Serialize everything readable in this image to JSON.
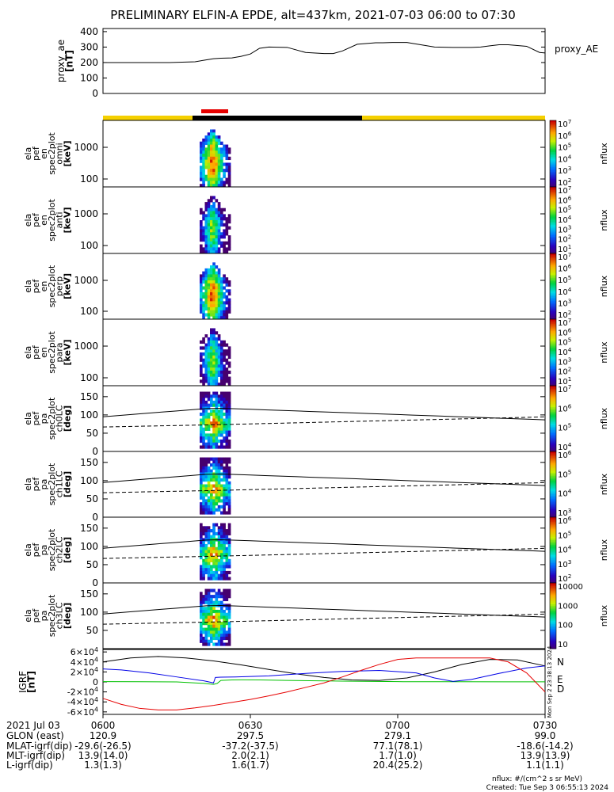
{
  "title": "PRELIMINARY ELFIN-A EPDE, alt=437km, 2021-07-03 06:00 to 07:30",
  "colors": {
    "red": "#e60000",
    "yellow": "#f5d000",
    "black": "#000000",
    "blue": "#0000e6",
    "green": "#00c000"
  },
  "chart_data": [
    {
      "type": "line",
      "id": "proxy_ae",
      "ylabel_lines": [
        "proxy_ae",
        "[nT]"
      ],
      "legend": "proxy_AE",
      "yticks": [
        "0",
        "100",
        "200",
        "300",
        "400"
      ],
      "ylim": [
        0,
        420
      ],
      "x_minutes": [
        0,
        20,
        36,
        50,
        55,
        60,
        64,
        70,
        75,
        80,
        85,
        90,
        100,
        110,
        120,
        125,
        130,
        138,
        148,
        152,
        157,
        165,
        180,
        190,
        200,
        205,
        210,
        215,
        220,
        230,
        237,
        240
      ],
      "values": [
        200,
        200,
        200,
        205,
        215,
        225,
        228,
        230,
        240,
        255,
        292,
        300,
        298,
        265,
        258,
        258,
        275,
        318,
        328,
        328,
        330,
        330,
        300,
        298,
        298,
        300,
        308,
        315,
        315,
        305,
        265,
        262
      ]
    },
    {
      "type": "heatmap",
      "id": "omni",
      "ylabel_lines": [
        "ela",
        "pef",
        "en",
        "spec2plot",
        "omni",
        "[keV]"
      ],
      "yticks": [
        "100",
        "1000"
      ],
      "colorbar_label": "nflux",
      "colorbar_ticks": [
        "10^2",
        "10^3",
        "10^4",
        "10^5",
        "10^6",
        "10^7"
      ]
    },
    {
      "type": "heatmap",
      "id": "anti",
      "ylabel_lines": [
        "ela",
        "pef",
        "en",
        "spec2plot",
        "anti",
        "[keV]"
      ],
      "yticks": [
        "100",
        "1000"
      ],
      "colorbar_label": "nflux",
      "colorbar_ticks": [
        "10^1",
        "10^2",
        "10^3",
        "10^4",
        "10^5",
        "10^6",
        "10^7"
      ]
    },
    {
      "type": "heatmap",
      "id": "perp",
      "ylabel_lines": [
        "ela",
        "pef",
        "en",
        "spec2plot",
        "perp",
        "[keV]"
      ],
      "yticks": [
        "100",
        "1000"
      ],
      "colorbar_label": "nflux",
      "colorbar_ticks": [
        "10^2",
        "10^3",
        "10^4",
        "10^5",
        "10^6",
        "10^7"
      ]
    },
    {
      "type": "heatmap",
      "id": "para",
      "ylabel_lines": [
        "ela",
        "pef",
        "en",
        "spec2plot",
        "para",
        "[keV]"
      ],
      "yticks": [
        "100",
        "1000"
      ],
      "colorbar_label": "nflux",
      "colorbar_ticks": [
        "10^1",
        "10^2",
        "10^3",
        "10^4",
        "10^5",
        "10^6",
        "10^7"
      ]
    },
    {
      "type": "heatmap",
      "id": "ch0LC",
      "ylabel_lines": [
        "ela",
        "pef",
        "pa",
        "spec2plot",
        "ch0LC",
        "[deg]"
      ],
      "yticks": [
        "0",
        "50",
        "100",
        "150"
      ],
      "colorbar_label": "nflux",
      "colorbar_ticks": [
        "10^4",
        "10^5",
        "10^6",
        "10^7"
      ]
    },
    {
      "type": "heatmap",
      "id": "ch1LC",
      "ylabel_lines": [
        "ela",
        "pef",
        "pa",
        "spec2plot",
        "ch1LC",
        "[deg]"
      ],
      "yticks": [
        "0",
        "50",
        "100",
        "150"
      ],
      "colorbar_label": "nflux",
      "colorbar_ticks": [
        "10^3",
        "10^4",
        "10^5",
        "10^6"
      ]
    },
    {
      "type": "heatmap",
      "id": "ch2LC",
      "ylabel_lines": [
        "ela",
        "pef",
        "pa",
        "spec2plot",
        "ch2LC",
        "[deg]"
      ],
      "yticks": [
        "0",
        "50",
        "100",
        "150"
      ],
      "colorbar_label": "nflux",
      "colorbar_ticks": [
        "10^2",
        "10^3",
        "10^4",
        "10^5",
        "10^6"
      ]
    },
    {
      "type": "heatmap",
      "id": "ch3LC",
      "ylabel_lines": [
        "ela",
        "pef",
        "pa",
        "spec2plot",
        "ch3LC",
        "[deg]"
      ],
      "yticks": [
        "50",
        "100",
        "150"
      ],
      "colorbar_label": "nflux",
      "colorbar_ticks": [
        "10",
        "100",
        "1000",
        "10000"
      ]
    },
    {
      "type": "line",
      "id": "igrf",
      "ylabel_lines": [
        "IGRF",
        "[nT]"
      ],
      "yticks": [
        "-6×10^4",
        "-4×10^4",
        "-2×10^4",
        "0",
        "2×10^4",
        "4×10^4",
        "6×10^4"
      ],
      "ylim": [
        -65000,
        65000
      ],
      "legend": [
        "N",
        "E",
        "D"
      ],
      "side_text": "Mon Sep 2 23:38:13 2024",
      "series": [
        {
          "name": "N",
          "color": "#000000",
          "x_minutes": [
            0,
            15,
            30,
            45,
            60,
            75,
            90,
            105,
            120,
            135,
            150,
            165,
            180,
            195,
            210,
            225,
            240
          ],
          "values": [
            40000,
            48000,
            51000,
            48000,
            42000,
            34000,
            25000,
            16000,
            9000,
            4000,
            3000,
            8000,
            20000,
            35000,
            45000,
            44000,
            32000
          ]
        },
        {
          "name": "E",
          "color": "#00c000",
          "x_minutes": [
            0,
            20,
            40,
            55,
            60,
            62,
            64,
            70,
            75,
            85,
            100,
            130,
            160,
            190,
            220,
            240
          ],
          "values": [
            500,
            300,
            0,
            -3000,
            -5000,
            -3000,
            3000,
            4000,
            4200,
            4000,
            3000,
            1500,
            500,
            300,
            200,
            100
          ]
        },
        {
          "name": "blue",
          "color": "#0000e6",
          "x_minutes": [
            0,
            10,
            25,
            40,
            55,
            60,
            61,
            64,
            72,
            90,
            110,
            130,
            150,
            170,
            180,
            190,
            200,
            215,
            230,
            240
          ],
          "values": [
            26000,
            24000,
            18000,
            10000,
            2000,
            -2000,
            9000,
            9500,
            10000,
            12000,
            17000,
            21000,
            23000,
            18000,
            8000,
            1000,
            5000,
            17000,
            28000,
            32000
          ]
        },
        {
          "name": "D",
          "color": "#e60000",
          "x_minutes": [
            0,
            10,
            20,
            30,
            40,
            50,
            60,
            70,
            80,
            90,
            100,
            110,
            120,
            130,
            140,
            150,
            160,
            170,
            180,
            190,
            200,
            210,
            220,
            230,
            240
          ],
          "values": [
            -33000,
            -45000,
            -53000,
            -56000,
            -56000,
            -52000,
            -47000,
            -41000,
            -35000,
            -28000,
            -20000,
            -11000,
            -2000,
            10000,
            23000,
            35000,
            45000,
            48000,
            48000,
            48000,
            48000,
            48000,
            40000,
            18000,
            -20000
          ]
        }
      ]
    }
  ],
  "bottom_table": {
    "rows": [
      {
        "label": "2021 Jul 03",
        "values": [
          "0600",
          "0630",
          "0700",
          "0730"
        ]
      },
      {
        "label": "GLON (east)",
        "values": [
          "120.9",
          "297.5",
          "279.1",
          "99.0"
        ]
      },
      {
        "label": "MLAT-igrf(dip)",
        "values": [
          "-29.6(-26.5)",
          "-37.2(-37.5)",
          "77.1(78.1)",
          "-18.6(-14.2)"
        ]
      },
      {
        "label": "MLT-igrf(dip)",
        "values": [
          "13.9(14.0)",
          "2.0(2.1)",
          "1.7(1.0)",
          "13.9(13.9)"
        ]
      },
      {
        "label": "L-igrf(dip)",
        "values": [
          "1.3(1.3)",
          "1.6(1.7)",
          "20.4(25.2)",
          "1.1(1.1)"
        ]
      }
    ]
  },
  "footer": {
    "units": "nflux: #/(cm^2 s sr MeV)",
    "created": "Created: Tue Sep  3 06:55:13 2024"
  }
}
